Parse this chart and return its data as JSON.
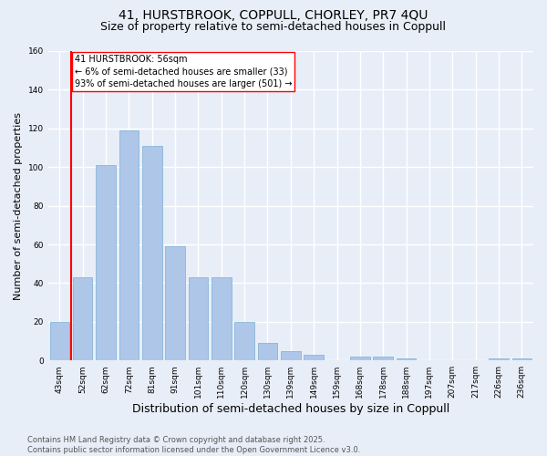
{
  "title": "41, HURSTBROOK, COPPULL, CHORLEY, PR7 4QU",
  "subtitle": "Size of property relative to semi-detached houses in Coppull",
  "xlabel": "Distribution of semi-detached houses by size in Coppull",
  "ylabel": "Number of semi-detached properties",
  "bar_labels": [
    "43sqm",
    "52sqm",
    "62sqm",
    "72sqm",
    "81sqm",
    "91sqm",
    "101sqm",
    "110sqm",
    "120sqm",
    "130sqm",
    "139sqm",
    "149sqm",
    "159sqm",
    "168sqm",
    "178sqm",
    "188sqm",
    "197sqm",
    "207sqm",
    "217sqm",
    "226sqm",
    "236sqm"
  ],
  "bar_values": [
    20,
    43,
    101,
    119,
    111,
    59,
    43,
    43,
    20,
    9,
    5,
    3,
    0,
    2,
    2,
    1,
    0,
    0,
    0,
    1,
    1
  ],
  "bar_color": "#aec6e8",
  "bar_edge_color": "#7bafd4",
  "background_color": "#e8eef8",
  "grid_color": "#ffffff",
  "vline_x": 0.5,
  "vline_color": "red",
  "annotation_text": "41 HURSTBROOK: 56sqm\n← 6% of semi-detached houses are smaller (33)\n93% of semi-detached houses are larger (501) →",
  "annotation_box_color": "white",
  "annotation_box_edge": "red",
  "ylim": [
    0,
    160
  ],
  "yticks": [
    0,
    20,
    40,
    60,
    80,
    100,
    120,
    140,
    160
  ],
  "footer": "Contains HM Land Registry data © Crown copyright and database right 2025.\nContains public sector information licensed under the Open Government Licence v3.0.",
  "title_fontsize": 10,
  "subtitle_fontsize": 9,
  "xlabel_fontsize": 9,
  "ylabel_fontsize": 8,
  "tick_fontsize": 6.5,
  "footer_fontsize": 6,
  "annotation_fontsize": 7
}
